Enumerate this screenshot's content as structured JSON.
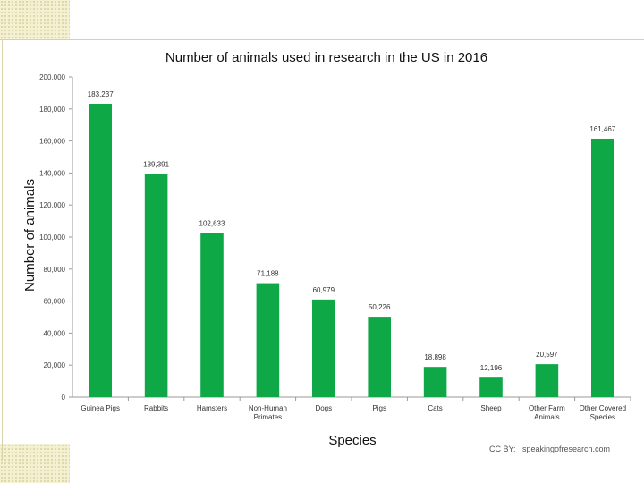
{
  "chart_data": {
    "type": "bar",
    "title": "Number of animals used in research in the US in 2016",
    "xlabel": "Species",
    "ylabel": "Number of animals",
    "ylim": [
      0,
      200000
    ],
    "yticks": [
      0,
      20000,
      40000,
      60000,
      80000,
      100000,
      120000,
      140000,
      160000,
      180000,
      200000
    ],
    "ytick_labels": [
      "0",
      "20,000",
      "40,000",
      "60,000",
      "80,000",
      "100,000",
      "120,000",
      "140,000",
      "160,000",
      "180,000",
      "200,000"
    ],
    "grid": false,
    "bar_color": "#0ea847",
    "categories": [
      [
        "Guinea Pigs"
      ],
      [
        "Rabbits"
      ],
      [
        "Hamsters"
      ],
      [
        "Non-Human",
        "Primates"
      ],
      [
        "Dogs"
      ],
      [
        "Pigs"
      ],
      [
        "Cats"
      ],
      [
        "Sheep"
      ],
      [
        "Other Farm",
        "Animals"
      ],
      [
        "Other Covered",
        "Species"
      ]
    ],
    "values": [
      183237,
      139391,
      102633,
      71188,
      60979,
      50226,
      18898,
      12196,
      20597,
      161467
    ],
    "value_labels": [
      "183,237",
      "139,391",
      "102,633",
      "71,188",
      "60,979",
      "50,226",
      "18,898",
      "12,196",
      "20,597",
      "161,467"
    ]
  },
  "credit": {
    "prefix": "CC BY:",
    "source": "speakingofresearch.com"
  }
}
